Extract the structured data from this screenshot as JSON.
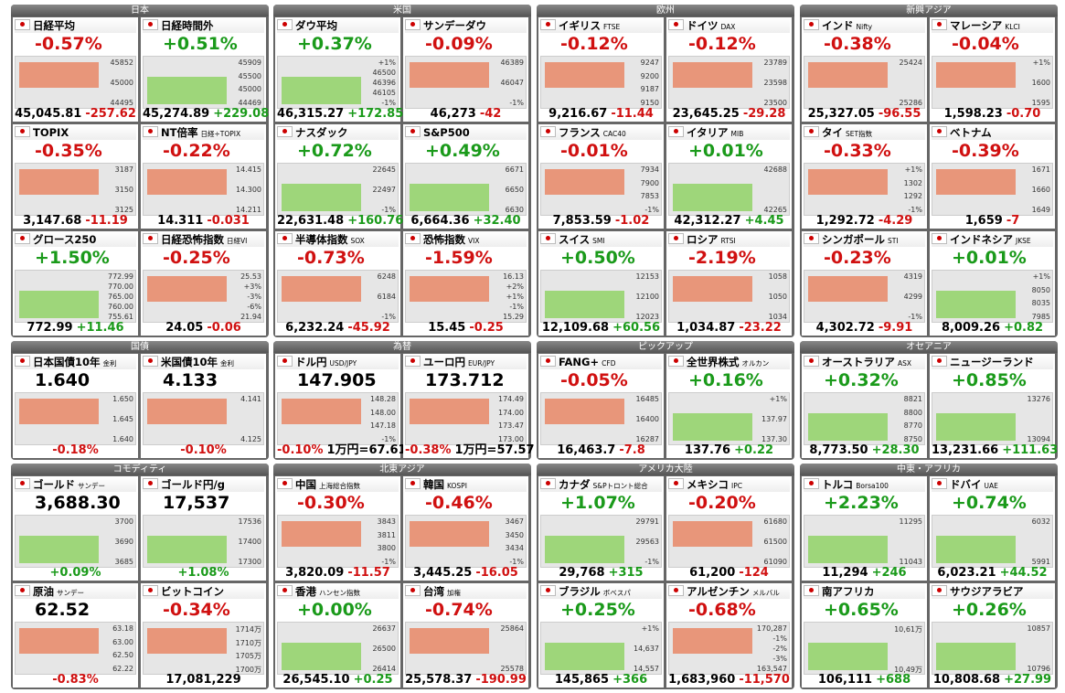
{
  "groups": [
    {
      "title": "日本",
      "cards": [
        {
          "name": "日経平均",
          "headline": "-0.57%",
          "labels": [
            "45852",
            "45000",
            "44495"
          ],
          "footer": [
            "45,045.81",
            "-257.62"
          ]
        },
        {
          "name": "日経時間外",
          "headline": "+0.51%",
          "labels": [
            "45909",
            "45500",
            "45000",
            "44469"
          ],
          "footer": [
            "45,274.89",
            "+229.08"
          ]
        },
        {
          "name": "TOPIX",
          "headline": "-0.35%",
          "labels": [
            "3187",
            "3150",
            "3125"
          ],
          "footer": [
            "3,147.68",
            "-11.19"
          ]
        },
        {
          "name": "NT倍率",
          "sub": "日経÷TOPIX",
          "headline": "-0.22%",
          "labels": [
            "14.415",
            "14.300",
            "14.211"
          ],
          "footer": [
            "14.311",
            "-0.031"
          ]
        },
        {
          "name": "グロース250",
          "headline": "+1.50%",
          "labels": [
            "772.99",
            "770.00",
            "765.00",
            "760.00",
            "755.61"
          ],
          "footer": [
            "772.99",
            "+11.46"
          ]
        },
        {
          "name": "日経恐怖指数",
          "sub": "日経VI",
          "headline": "-0.25%",
          "labels": [
            "25.53",
            "+3%",
            "-3%",
            "-6%",
            "21.94"
          ],
          "footer": [
            "24.05",
            "-0.06"
          ]
        }
      ]
    },
    {
      "title": "米国",
      "cards": [
        {
          "name": "ダウ平均",
          "headline": "+0.37%",
          "labels": [
            "+1%",
            "46500",
            "46396",
            "46105",
            "-1%"
          ],
          "footer": [
            "46,315.27",
            "+172.85"
          ]
        },
        {
          "name": "サンデーダウ",
          "headline": "-0.09%",
          "labels": [
            "46389",
            "46047",
            "-1%"
          ],
          "footer": [
            "46,273",
            "-42"
          ]
        },
        {
          "name": "ナスダック",
          "headline": "+0.72%",
          "labels": [
            "22645",
            "22497",
            "-1%"
          ],
          "footer": [
            "22,631.48",
            "+160.76"
          ]
        },
        {
          "name": "S&P500",
          "headline": "+0.49%",
          "labels": [
            "6671",
            "6650",
            "6630"
          ],
          "footer": [
            "6,664.36",
            "+32.40"
          ]
        },
        {
          "name": "半導体指数",
          "sub": "SOX",
          "headline": "-0.73%",
          "labels": [
            "6248",
            "6184",
            "-1%"
          ],
          "footer": [
            "6,232.24",
            "-45.92"
          ]
        },
        {
          "name": "恐怖指数",
          "sub": "VIX",
          "headline": "-1.59%",
          "labels": [
            "16.13",
            "+2%",
            "+1%",
            "-1%",
            "15.29"
          ],
          "footer": [
            "15.45",
            "-0.25"
          ]
        }
      ]
    },
    {
      "title": "欧州",
      "cards": [
        {
          "name": "イギリス",
          "sub": "FTSE",
          "headline": "-0.12%",
          "labels": [
            "9247",
            "9200",
            "9187",
            "9150"
          ],
          "footer": [
            "9,216.67",
            "-11.44"
          ]
        },
        {
          "name": "ドイツ",
          "sub": "DAX",
          "headline": "-0.12%",
          "labels": [
            "23789",
            "23598",
            "23500"
          ],
          "footer": [
            "23,645.25",
            "-29.28"
          ]
        },
        {
          "name": "フランス",
          "sub": "CAC40",
          "headline": "-0.01%",
          "labels": [
            "7934",
            "7900",
            "7853",
            "-1%"
          ],
          "footer": [
            "7,853.59",
            "-1.02"
          ]
        },
        {
          "name": "イタリア",
          "sub": "MIB",
          "headline": "+0.01%",
          "labels": [
            "42688",
            "42265"
          ],
          "footer": [
            "42,312.27",
            "+4.45"
          ]
        },
        {
          "name": "スイス",
          "sub": "SMI",
          "headline": "+0.50%",
          "labels": [
            "12153",
            "12100",
            "12023"
          ],
          "footer": [
            "12,109.68",
            "+60.56"
          ]
        },
        {
          "name": "ロシア",
          "sub": "RTSI",
          "headline": "-2.19%",
          "labels": [
            "1058",
            "1050",
            "1034"
          ],
          "footer": [
            "1,034.87",
            "-23.22"
          ]
        }
      ]
    },
    {
      "title": "新興アジア",
      "cards": [
        {
          "name": "インド",
          "sub": "Nifty",
          "headline": "-0.38%",
          "labels": [
            "25424",
            "25286"
          ],
          "footer": [
            "25,327.05",
            "-96.55"
          ]
        },
        {
          "name": "マレーシア",
          "sub": "KLCI",
          "headline": "-0.04%",
          "labels": [
            "+1%",
            "1600",
            "1595"
          ],
          "footer": [
            "1,598.23",
            "-0.70"
          ]
        },
        {
          "name": "タイ",
          "sub": "SET指数",
          "headline": "-0.33%",
          "labels": [
            "+1%",
            "1302",
            "1292",
            "-1%"
          ],
          "footer": [
            "1,292.72",
            "-4.29"
          ]
        },
        {
          "name": "ベトナム",
          "headline": "-0.39%",
          "labels": [
            "1671",
            "1660",
            "1649"
          ],
          "footer": [
            "1,659",
            "-7"
          ]
        },
        {
          "name": "シンガポール",
          "sub": "STI",
          "headline": "-0.23%",
          "labels": [
            "4319",
            "4299",
            "-1%"
          ],
          "footer": [
            "4,302.72",
            "-9.91"
          ]
        },
        {
          "name": "インドネシア",
          "sub": "JKSE",
          "headline": "+0.01%",
          "labels": [
            "+1%",
            "8050",
            "8035",
            "7985"
          ],
          "footer": [
            "8,009.26",
            "+0.82"
          ]
        }
      ]
    },
    {
      "title": "国債",
      "cards": [
        {
          "name": "日本国債10年",
          "sub": "金利",
          "headline": "1.640",
          "labels": [
            "1.650",
            "1.645",
            "1.640"
          ],
          "footer": [
            "-0.18%"
          ]
        },
        {
          "name": "米国債10年",
          "sub": "金利",
          "headline": "4.133",
          "labels": [
            "4.141",
            "4.125"
          ],
          "footer": [
            "-0.10%"
          ]
        }
      ]
    },
    {
      "title": "為替",
      "cards": [
        {
          "name": "ドル円",
          "sub": "USD/JPY",
          "headline": "147.905",
          "labels": [
            "148.28",
            "148.00",
            "147.18",
            "-1%"
          ],
          "footer": [
            "-0.10%",
            "1万円=67.61"
          ]
        },
        {
          "name": "ユーロ円",
          "sub": "EUR/JPY",
          "headline": "173.712",
          "labels": [
            "174.49",
            "174.00",
            "173.47",
            "173.00"
          ],
          "footer": [
            "-0.38%",
            "1万円=57.57"
          ]
        }
      ]
    },
    {
      "title": "ピックアップ",
      "cards": [
        {
          "name": "FANG+",
          "sub": "CFD",
          "headline": "-0.05%",
          "labels": [
            "16485",
            "16400",
            "16287"
          ],
          "footer": [
            "16,463.7",
            "-7.8"
          ]
        },
        {
          "name": "全世界株式",
          "sub": "オルカン",
          "headline": "+0.16%",
          "labels": [
            "+1%",
            "137.97",
            "137.30"
          ],
          "footer": [
            "137.76",
            "+0.22"
          ]
        }
      ]
    },
    {
      "title": "オセアニア",
      "cards": [
        {
          "name": "オーストラリア",
          "sub": "ASX",
          "headline": "+0.32%",
          "labels": [
            "8821",
            "8800",
            "8770",
            "8750"
          ],
          "footer": [
            "8,773.50",
            "+28.30"
          ]
        },
        {
          "name": "ニュージーランド",
          "headline": "+0.85%",
          "labels": [
            "13276",
            "13094"
          ],
          "footer": [
            "13,231.66",
            "+111.63"
          ]
        }
      ]
    },
    {
      "title": "コモディティ",
      "cards": [
        {
          "name": "ゴールド",
          "sub": "サンデー",
          "headline": "3,688.30",
          "labels": [
            "3700",
            "3690",
            "3685"
          ],
          "footer": [
            "+0.09%"
          ]
        },
        {
          "name": "ゴールド円/g",
          "headline": "17,537",
          "labels": [
            "17536",
            "17400",
            "17300"
          ],
          "footer": [
            "+1.08%"
          ]
        },
        {
          "name": "原油",
          "sub": "サンデー",
          "headline": "62.52",
          "labels": [
            "63.18",
            "63.00",
            "62.50",
            "62.22"
          ],
          "footer": [
            "-0.83%"
          ]
        },
        {
          "name": "ビットコイン",
          "headline": "-0.34%",
          "labels": [
            "1714万",
            "1710万",
            "1705万",
            "1700万"
          ],
          "footer": [
            "17,081,229"
          ]
        }
      ]
    },
    {
      "title": "北東アジア",
      "cards": [
        {
          "name": "中国",
          "sub": "上海総合指数",
          "headline": "-0.30%",
          "labels": [
            "3843",
            "3811",
            "3800",
            "-1%"
          ],
          "footer": [
            "3,820.09",
            "-11.57"
          ]
        },
        {
          "name": "韓国",
          "sub": "KOSPI",
          "headline": "-0.46%",
          "labels": [
            "3467",
            "3450",
            "3434",
            "-1%"
          ],
          "footer": [
            "3,445.25",
            "-16.05"
          ]
        },
        {
          "name": "香港",
          "sub": "ハンセン指数",
          "headline": "+0.00%",
          "labels": [
            "26637",
            "26500",
            "26414"
          ],
          "footer": [
            "26,545.10",
            "+0.25"
          ]
        },
        {
          "name": "台湾",
          "sub": "加権",
          "headline": "-0.74%",
          "labels": [
            "25864",
            "25578"
          ],
          "footer": [
            "25,578.37",
            "-190.99"
          ]
        }
      ]
    },
    {
      "title": "アメリカ大陸",
      "cards": [
        {
          "name": "カナダ",
          "sub": "S&Pトロント総合",
          "headline": "+1.07%",
          "labels": [
            "29791",
            "29563",
            "-1%"
          ],
          "footer": [
            "29,768",
            "+315"
          ]
        },
        {
          "name": "メキシコ",
          "sub": "IPC",
          "headline": "-0.20%",
          "labels": [
            "61680",
            "61500",
            "61090"
          ],
          "footer": [
            "61,200",
            "-124"
          ]
        },
        {
          "name": "ブラジル",
          "sub": "ボベスパ",
          "headline": "+0.25%",
          "labels": [
            "+1%",
            "14,637",
            "14,557"
          ],
          "footer": [
            "145,865",
            "+366"
          ]
        },
        {
          "name": "アルゼンチン",
          "sub": "メルバル",
          "headline": "-0.68%",
          "labels": [
            "170,287",
            "-1%",
            "-2%",
            "-3%",
            "163,547"
          ],
          "footer": [
            "1,683,960",
            "-11,570"
          ]
        }
      ]
    },
    {
      "title": "中東・アフリカ",
      "cards": [
        {
          "name": "トルコ",
          "sub": "Borsa100",
          "headline": "+2.23%",
          "labels": [
            "11295",
            "11043"
          ],
          "footer": [
            "11,294",
            "+246"
          ]
        },
        {
          "name": "ドバイ",
          "sub": "UAE",
          "headline": "+0.74%",
          "labels": [
            "6032",
            "5991"
          ],
          "footer": [
            "6,023.21",
            "+44.52"
          ]
        },
        {
          "name": "南アフリカ",
          "headline": "+0.65%",
          "labels": [
            "10,61万",
            "10,49万"
          ],
          "footer": [
            "106,111",
            "+688"
          ]
        },
        {
          "name": "サウジアラビア",
          "headline": "+0.26%",
          "labels": [
            "10857",
            "10796"
          ],
          "footer": [
            "10,808.68",
            "+27.99"
          ]
        }
      ]
    }
  ]
}
